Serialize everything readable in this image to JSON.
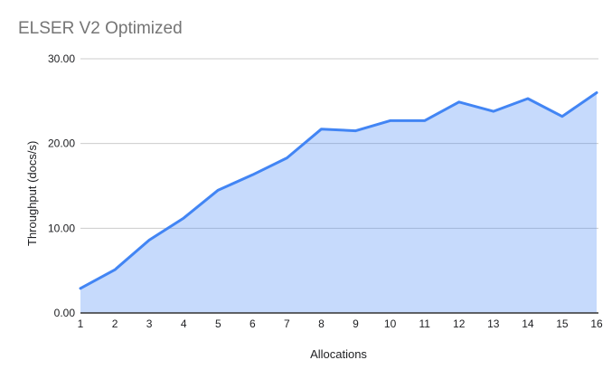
{
  "chart_data": {
    "type": "area",
    "title": "ELSER V2 Optimized",
    "xlabel": "Allocations",
    "ylabel": "Throughput (docs/s)",
    "categories": [
      "1",
      "2",
      "3",
      "4",
      "5",
      "6",
      "7",
      "8",
      "9",
      "10",
      "11",
      "12",
      "13",
      "14",
      "15",
      "16"
    ],
    "series": [
      {
        "name": "Throughput (docs/s)",
        "values": [
          2.9,
          5.1,
          8.6,
          11.2,
          14.5,
          16.3,
          18.3,
          21.7,
          21.5,
          22.7,
          22.7,
          24.9,
          23.8,
          25.3,
          23.2,
          26.0
        ]
      }
    ],
    "ylim": [
      0,
      30
    ],
    "y_ticks": [
      {
        "value": 0,
        "label": "0.00"
      },
      {
        "value": 10,
        "label": "10.00"
      },
      {
        "value": 20,
        "label": "20.00"
      },
      {
        "value": 30,
        "label": "30.00"
      }
    ],
    "grid": true,
    "legend": "none",
    "colors": {
      "line": "#4285f4",
      "fill": "rgba(66,133,244,0.30)",
      "gridline": "#cccccc",
      "axis_line": "#333333",
      "tick_label": "#202124",
      "title": "#757575",
      "axis_title": "#202124"
    }
  }
}
